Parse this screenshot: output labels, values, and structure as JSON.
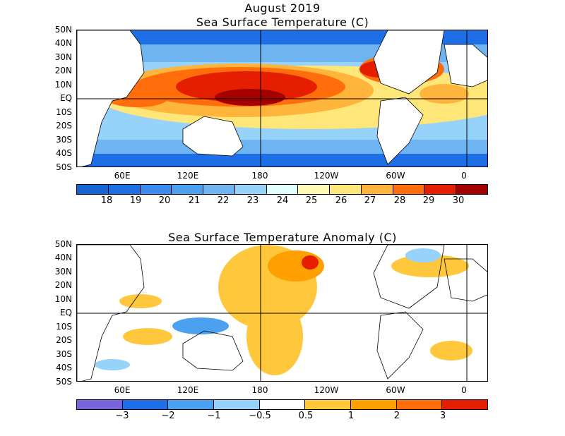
{
  "top_title": "August 2019",
  "panels": [
    {
      "id": "sst",
      "title": "Sea Surface Temperature (C)",
      "lat_labels": [
        "50N",
        "40N",
        "30N",
        "20N",
        "10N",
        "EQ",
        "10S",
        "20S",
        "30S",
        "40S",
        "50S"
      ],
      "lon_labels": [
        "60E",
        "120E",
        "180",
        "120W",
        "60W",
        "0"
      ],
      "colorbar": {
        "colors": [
          "#1464d2",
          "#1e6ee6",
          "#3c8cf0",
          "#4ba0f0",
          "#6eb4f0",
          "#96d2fa",
          "#e1ffff",
          "#fffab4",
          "#ffe678",
          "#ffb43c",
          "#ff6e0a",
          "#e61e00",
          "#a50000"
        ],
        "labels": [
          "18",
          "19",
          "20",
          "21",
          "22",
          "23",
          "24",
          "25",
          "26",
          "27",
          "28",
          "29",
          "30"
        ]
      }
    },
    {
      "id": "anomaly",
      "title": "Sea Surface Temperature Anomaly (C)",
      "lat_labels": [
        "50N",
        "40N",
        "30N",
        "20N",
        "10N",
        "EQ",
        "10S",
        "20S",
        "30S",
        "40S",
        "50S"
      ],
      "lon_labels": [
        "60E",
        "120E",
        "180",
        "120W",
        "60W",
        "0"
      ],
      "colorbar": {
        "colors": [
          "#7864dc",
          "#1e6ee6",
          "#4ba0f0",
          "#96d2fa",
          "#ffffff",
          "#ffc83c",
          "#ffa000",
          "#ff6e0a",
          "#e61e00"
        ],
        "labels": [
          "−3",
          "−2",
          "−1",
          "−0.5",
          "0.5",
          "1",
          "2",
          "3"
        ]
      }
    }
  ]
}
